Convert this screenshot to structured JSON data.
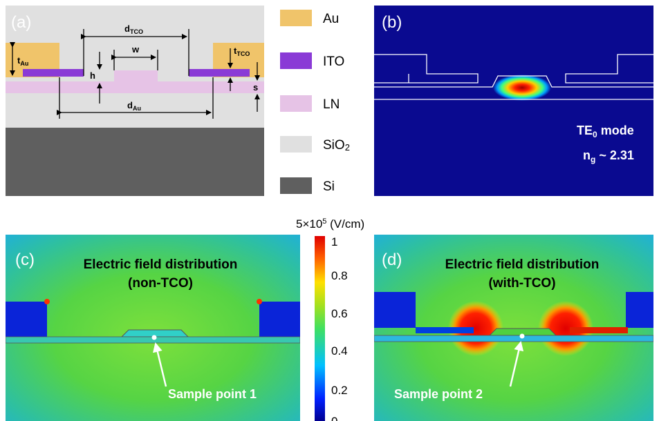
{
  "panel_a": {
    "label": "(a)",
    "dims": {
      "t_au": [
        "t",
        "Au"
      ],
      "d_tco": [
        "d",
        "TCO"
      ],
      "w": "w",
      "h": "h",
      "t_tco": [
        "t",
        "TCO"
      ],
      "s": "s",
      "d_au": [
        "d",
        "Au"
      ]
    }
  },
  "legend": {
    "au": "Au",
    "ito": "ITO",
    "ln": "LN",
    "sio2": [
      "SiO",
      "2"
    ],
    "si": "Si"
  },
  "panel_b": {
    "label": "(b)",
    "mode": [
      "TE",
      "0",
      " mode"
    ],
    "ng": [
      "n",
      "g",
      " ~ 2.31"
    ]
  },
  "colorbar": {
    "unit": [
      "5×10",
      "5",
      " (V/cm)"
    ],
    "ticks": [
      "1",
      "0.8",
      "0.6",
      "0.4",
      "0.2",
      "0"
    ]
  },
  "panel_c": {
    "label": "(c)",
    "title": "Electric field distribution",
    "subtitle": "(non-TCO)",
    "sample": "Sample point 1"
  },
  "panel_d": {
    "label": "(d)",
    "title": "Electric field distribution",
    "subtitle": "(with-TCO)",
    "sample": "Sample point 2"
  }
}
